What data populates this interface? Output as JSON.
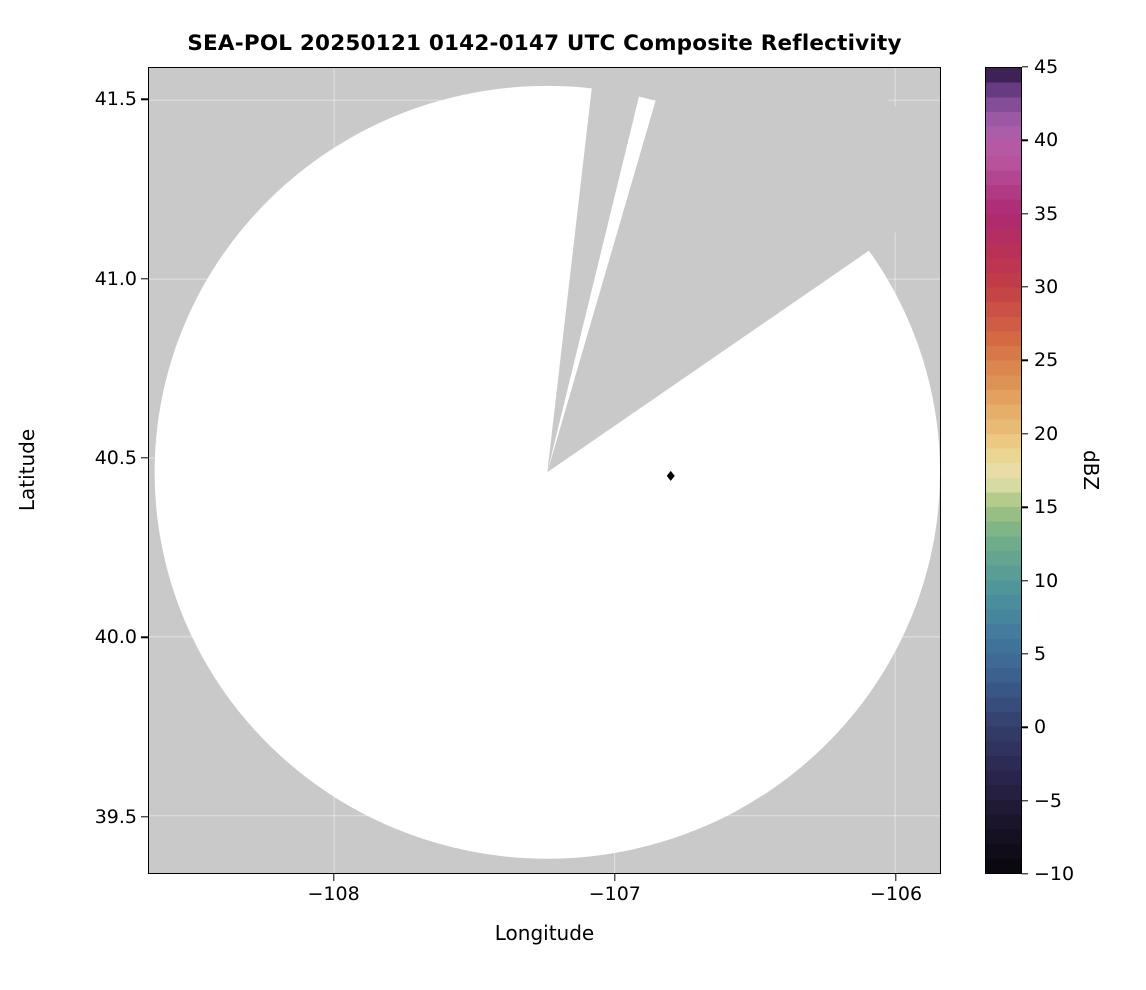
{
  "figure": {
    "title": "SEA-POL 20250121 0142-0147 UTC Composite Reflectivity",
    "xlabel": "Longitude",
    "ylabel": "Latitude",
    "x_tick_labels": [
      "−108",
      "−107",
      "−106"
    ],
    "y_tick_labels": [
      "41.5",
      "41.0",
      "40.5",
      "40.0",
      "39.5"
    ],
    "colorbar_label": "dBZ",
    "colorbar_tick_labels": [
      "45",
      "40",
      "35",
      "30",
      "25",
      "20",
      "15",
      "10",
      "5",
      "0",
      "−5",
      "−10"
    ]
  },
  "chart_data": {
    "type": "heatmap",
    "title": "SEA-POL 20250121 0142-0147 UTC Composite Reflectivity",
    "xlabel": "Longitude",
    "ylabel": "Latitude",
    "xlim": [
      -108.66,
      -105.84
    ],
    "ylim": [
      39.34,
      41.59
    ],
    "x_ticks": [
      -108,
      -107,
      -106
    ],
    "y_ticks": [
      41.5,
      41.0,
      40.5,
      40.0,
      39.5
    ],
    "grid": true,
    "background_color": "#c9c9c9",
    "no_echo_color": "#ffffff",
    "colorbar": {
      "label": "dBZ",
      "min": -10,
      "max": 45,
      "tick_step": 5,
      "band_step": 1
    },
    "radar": {
      "center_lon": -107.24,
      "center_lat": 40.46,
      "coverage_radius_deg_lon": 1.4,
      "coverage_radius_deg_lat": 1.08,
      "blocked_sectors_azimuth_deg": [
        [
          6.5,
          13.5
        ],
        [
          16,
          55
        ]
      ]
    },
    "markers": [
      {
        "lon": -106.8,
        "lat": 40.45,
        "shape": "diamond",
        "color": "#000000"
      }
    ],
    "colormap_stops": [
      {
        "value": -10,
        "color": "#08070a"
      },
      {
        "value": -6,
        "color": "#1e1730"
      },
      {
        "value": -3,
        "color": "#2b2750"
      },
      {
        "value": 0,
        "color": "#333e6a"
      },
      {
        "value": 3,
        "color": "#3a5c8c"
      },
      {
        "value": 5,
        "color": "#3f6f99"
      },
      {
        "value": 8,
        "color": "#47899e"
      },
      {
        "value": 10,
        "color": "#539996"
      },
      {
        "value": 13,
        "color": "#74b188"
      },
      {
        "value": 15,
        "color": "#a2c481"
      },
      {
        "value": 17,
        "color": "#e6e2ae"
      },
      {
        "value": 19,
        "color": "#ecd089"
      },
      {
        "value": 21,
        "color": "#e7b46e"
      },
      {
        "value": 23,
        "color": "#e09a59"
      },
      {
        "value": 25,
        "color": "#d97f4b"
      },
      {
        "value": 27,
        "color": "#d16342"
      },
      {
        "value": 30,
        "color": "#c33f45"
      },
      {
        "value": 32,
        "color": "#bb3153"
      },
      {
        "value": 35,
        "color": "#ac2a70"
      },
      {
        "value": 37,
        "color": "#b23f8a"
      },
      {
        "value": 39,
        "color": "#ba58a0"
      },
      {
        "value": 41,
        "color": "#a75fa9"
      },
      {
        "value": 43,
        "color": "#7a4692"
      },
      {
        "value": 44,
        "color": "#53306f"
      },
      {
        "value": 45,
        "color": "#27143a"
      }
    ]
  }
}
